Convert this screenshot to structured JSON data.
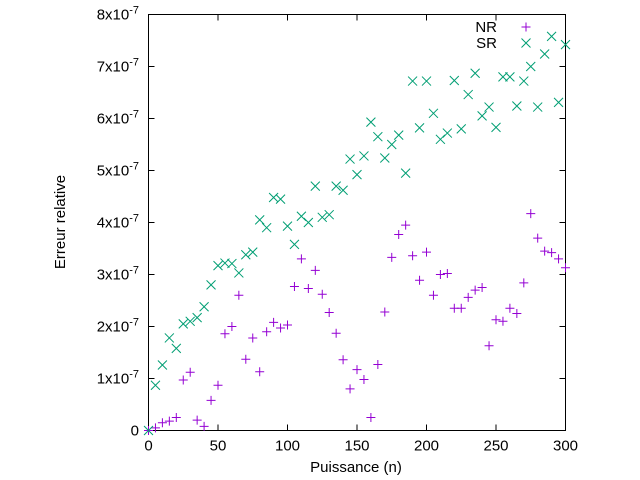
{
  "chart_data": {
    "type": "scatter",
    "title": "",
    "xlabel": "Puissance (n)",
    "ylabel": "Erreur relative",
    "xlim": [
      0,
      300
    ],
    "ylim": [
      0,
      8e-07
    ],
    "grid": false,
    "legend_position": "top-right",
    "x_ticks": [
      {
        "value": 0,
        "label": "0"
      },
      {
        "value": 50,
        "label": "50"
      },
      {
        "value": 100,
        "label": "100"
      },
      {
        "value": 150,
        "label": "150"
      },
      {
        "value": 200,
        "label": "200"
      },
      {
        "value": 250,
        "label": "250"
      },
      {
        "value": 300,
        "label": "300"
      }
    ],
    "y_ticks": [
      {
        "value": 0,
        "mantissa": "0",
        "exp": ""
      },
      {
        "value": 1e-07,
        "mantissa": "1x10",
        "exp": "-7"
      },
      {
        "value": 2e-07,
        "mantissa": "2x10",
        "exp": "-7"
      },
      {
        "value": 3e-07,
        "mantissa": "3x10",
        "exp": "-7"
      },
      {
        "value": 4e-07,
        "mantissa": "4x10",
        "exp": "-7"
      },
      {
        "value": 5e-07,
        "mantissa": "5x10",
        "exp": "-7"
      },
      {
        "value": 6e-07,
        "mantissa": "6x10",
        "exp": "-7"
      },
      {
        "value": 7e-07,
        "mantissa": "7x10",
        "exp": "-7"
      },
      {
        "value": 8e-07,
        "mantissa": "8x10",
        "exp": "-7"
      }
    ],
    "series": [
      {
        "name": "NR",
        "marker": "plus",
        "color": "#9400D3",
        "points": [
          [
            0,
            0
          ],
          [
            5,
            5e-09
          ],
          [
            10,
            1.5e-08
          ],
          [
            15,
            1.8e-08
          ],
          [
            20,
            2.5e-08
          ],
          [
            25,
            9.7e-08
          ],
          [
            30,
            1.12e-07
          ],
          [
            35,
            2e-08
          ],
          [
            40,
            8e-09
          ],
          [
            45,
            5.8e-08
          ],
          [
            50,
            8.7e-08
          ],
          [
            55,
            1.86e-07
          ],
          [
            60,
            2e-07
          ],
          [
            65,
            2.6e-07
          ],
          [
            70,
            1.37e-07
          ],
          [
            75,
            1.78e-07
          ],
          [
            80,
            1.13e-07
          ],
          [
            85,
            1.9e-07
          ],
          [
            90,
            2.08e-07
          ],
          [
            95,
            1.97e-07
          ],
          [
            100,
            2.03e-07
          ],
          [
            105,
            2.77e-07
          ],
          [
            110,
            3.3e-07
          ],
          [
            115,
            2.73e-07
          ],
          [
            120,
            3.08e-07
          ],
          [
            125,
            2.62e-07
          ],
          [
            130,
            2.27e-07
          ],
          [
            135,
            1.87e-07
          ],
          [
            140,
            1.36e-07
          ],
          [
            145,
            8e-08
          ],
          [
            150,
            1.17e-07
          ],
          [
            155,
            9.8e-08
          ],
          [
            160,
            2.5e-08
          ],
          [
            165,
            1.27e-07
          ],
          [
            170,
            2.28e-07
          ],
          [
            175,
            3.33e-07
          ],
          [
            180,
            3.77e-07
          ],
          [
            185,
            3.95e-07
          ],
          [
            190,
            3.36e-07
          ],
          [
            195,
            2.89e-07
          ],
          [
            200,
            3.43e-07
          ],
          [
            205,
            2.6e-07
          ],
          [
            210,
            3e-07
          ],
          [
            215,
            3.02e-07
          ],
          [
            220,
            2.35e-07
          ],
          [
            225,
            2.35e-07
          ],
          [
            230,
            2.56e-07
          ],
          [
            235,
            2.7e-07
          ],
          [
            240,
            2.75e-07
          ],
          [
            245,
            1.63e-07
          ],
          [
            250,
            2.13e-07
          ],
          [
            255,
            2.1e-07
          ],
          [
            260,
            2.35e-07
          ],
          [
            265,
            2.25e-07
          ],
          [
            270,
            2.84e-07
          ],
          [
            275,
            4.17e-07
          ],
          [
            280,
            3.7e-07
          ],
          [
            285,
            3.45e-07
          ],
          [
            290,
            3.42e-07
          ],
          [
            295,
            3.3e-07
          ],
          [
            300,
            3.13e-07
          ]
        ]
      },
      {
        "name": "SR",
        "marker": "cross",
        "color": "#009E73",
        "points": [
          [
            0,
            0
          ],
          [
            5,
            8.7e-08
          ],
          [
            10,
            1.26e-07
          ],
          [
            15,
            1.78e-07
          ],
          [
            20,
            1.58e-07
          ],
          [
            25,
            2.05e-07
          ],
          [
            30,
            2.1e-07
          ],
          [
            35,
            2.17e-07
          ],
          [
            40,
            2.38e-07
          ],
          [
            45,
            2.8e-07
          ],
          [
            50,
            3.17e-07
          ],
          [
            55,
            3.22e-07
          ],
          [
            60,
            3.21e-07
          ],
          [
            65,
            3.03e-07
          ],
          [
            70,
            3.38e-07
          ],
          [
            75,
            3.43e-07
          ],
          [
            80,
            4.05e-07
          ],
          [
            85,
            3.9e-07
          ],
          [
            90,
            4.48e-07
          ],
          [
            95,
            4.45e-07
          ],
          [
            100,
            3.93e-07
          ],
          [
            105,
            3.58e-07
          ],
          [
            110,
            4.12e-07
          ],
          [
            115,
            4e-07
          ],
          [
            120,
            4.7e-07
          ],
          [
            125,
            4.1e-07
          ],
          [
            130,
            4.15e-07
          ],
          [
            135,
            4.7e-07
          ],
          [
            140,
            4.62e-07
          ],
          [
            145,
            5.22e-07
          ],
          [
            150,
            4.92e-07
          ],
          [
            155,
            5.28e-07
          ],
          [
            160,
            5.93e-07
          ],
          [
            165,
            5.65e-07
          ],
          [
            170,
            5.24e-07
          ],
          [
            175,
            5.5e-07
          ],
          [
            180,
            5.68e-07
          ],
          [
            185,
            4.95e-07
          ],
          [
            190,
            6.72e-07
          ],
          [
            195,
            5.82e-07
          ],
          [
            200,
            6.72e-07
          ],
          [
            205,
            6.1e-07
          ],
          [
            210,
            5.6e-07
          ],
          [
            215,
            5.72e-07
          ],
          [
            220,
            6.73e-07
          ],
          [
            225,
            5.8e-07
          ],
          [
            230,
            6.46e-07
          ],
          [
            235,
            6.87e-07
          ],
          [
            240,
            6.05e-07
          ],
          [
            245,
            6.22e-07
          ],
          [
            250,
            5.83e-07
          ],
          [
            255,
            6.8e-07
          ],
          [
            260,
            6.8e-07
          ],
          [
            265,
            6.24e-07
          ],
          [
            270,
            6.72e-07
          ],
          [
            275,
            7e-07
          ],
          [
            280,
            6.22e-07
          ],
          [
            285,
            7.24e-07
          ],
          [
            290,
            7.58e-07
          ],
          [
            295,
            6.31e-07
          ],
          [
            300,
            7.42e-07
          ]
        ]
      }
    ]
  }
}
